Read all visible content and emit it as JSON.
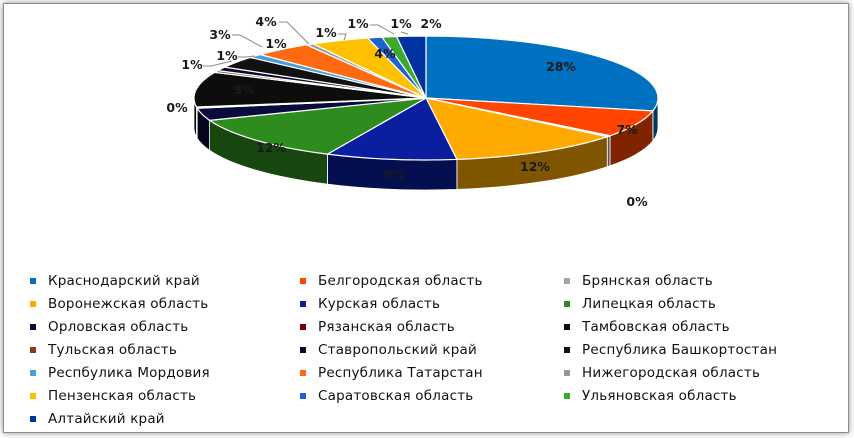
{
  "chart_data": {
    "type": "pie",
    "title": "",
    "legend_position": "bottom",
    "slices": [
      {
        "name": "Краснодарский край",
        "value": 28,
        "label": "28%",
        "color": "#0070C0"
      },
      {
        "name": "Белгородская область",
        "value": 7,
        "label": "7%",
        "color": "#FF4500"
      },
      {
        "name": "Брянская область",
        "value": 0.3,
        "label": "0%",
        "color": "#A6A6A6"
      },
      {
        "name": "Воронежская область",
        "value": 12,
        "label": "12%",
        "color": "#FFAA00"
      },
      {
        "name": "Курская область",
        "value": 9,
        "label": "9%",
        "color": "#0A1EA0"
      },
      {
        "name": "Липецкая область",
        "value": 12,
        "label": "12%",
        "color": "#2E8B1E"
      },
      {
        "name": "Орловская область",
        "value": 3.2,
        "label": "",
        "color": "#0A0A3C"
      },
      {
        "name": "Рязанская область",
        "value": 0.3,
        "label": "0%",
        "color": "#7A0000"
      },
      {
        "name": "Тамбовская область",
        "value": 9,
        "label": "9%",
        "color": "#0D0D0D"
      },
      {
        "name": "Тульская область",
        "value": 0.5,
        "label": "1%",
        "color": "#8B3A1A"
      },
      {
        "name": "Ставропольский край",
        "value": 1,
        "label": "1%",
        "color": "#0A0A30"
      },
      {
        "name": "Республика Башкортостан",
        "value": 3,
        "label": "3%",
        "color": "#111111"
      },
      {
        "name": "Респбулика  Мордовия",
        "value": 1,
        "label": "1%",
        "color": "#4A9ED8"
      },
      {
        "name": "Республика Татарстан",
        "value": 4,
        "label": "4%",
        "color": "#FF6A10"
      },
      {
        "name": "Нижегородская область",
        "value": 0.5,
        "label": "1%",
        "color": "#999999"
      },
      {
        "name": "Пензенская область",
        "value": 4,
        "label": "4%",
        "color": "#FFC000"
      },
      {
        "name": "Саратовская область",
        "value": 1,
        "label": "1%",
        "color": "#2060D0"
      },
      {
        "name": "Ульяновская область",
        "value": 1,
        "label": "1%",
        "color": "#3AAA2A"
      },
      {
        "name": "Алтайский край",
        "value": 2,
        "label": "2%",
        "color": "#0033A0"
      }
    ]
  }
}
